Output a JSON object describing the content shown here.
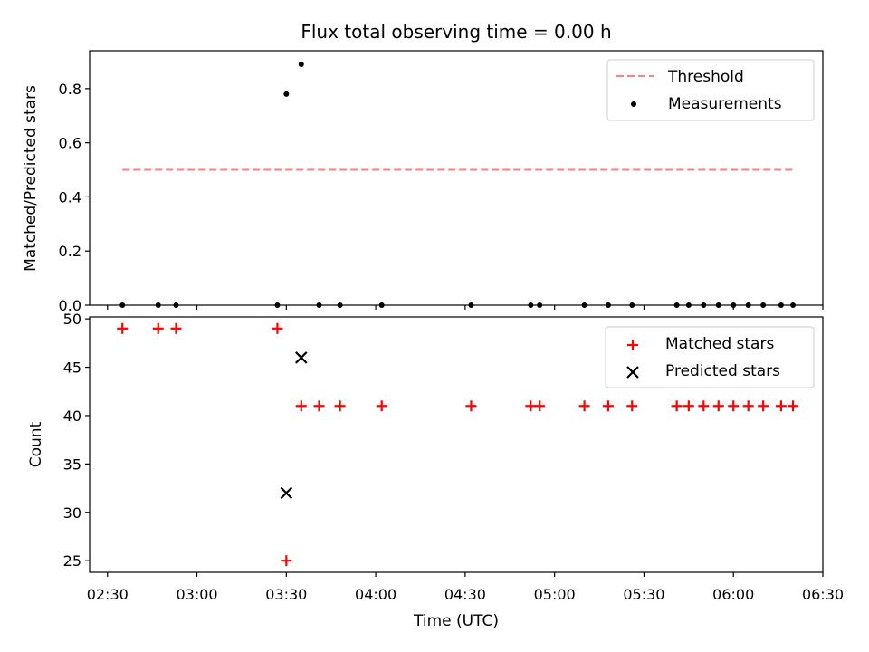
{
  "chart_data": [
    {
      "type": "scatter",
      "title": "Flux total observing time = 0.00 h",
      "ylabel": "Matched/Predicted stars",
      "xlabel": "",
      "x_tick_labels": [],
      "ylim": [
        0.0,
        0.94
      ],
      "yticks": [
        0.0,
        0.2,
        0.4,
        0.6,
        0.8
      ],
      "ytick_labels": [
        "0.0",
        "0.2",
        "0.4",
        "0.6",
        "0.8"
      ],
      "legend_position": "top-right",
      "series": [
        {
          "name": "Threshold",
          "kind": "line",
          "style": "dashed",
          "color": "#ff7f7f",
          "points": [
            [
              "02:35",
              0.5
            ],
            [
              "06:20",
              0.5
            ]
          ]
        },
        {
          "name": "Measurements",
          "kind": "scatter",
          "marker": "dot",
          "color": "#000000",
          "points": [
            [
              "02:35",
              0.0
            ],
            [
              "02:47",
              0.0
            ],
            [
              "02:53",
              0.0
            ],
            [
              "03:27",
              0.0
            ],
            [
              "03:30",
              0.78
            ],
            [
              "03:35",
              0.89
            ],
            [
              "03:41",
              0.0
            ],
            [
              "03:48",
              0.0
            ],
            [
              "04:02",
              0.0
            ],
            [
              "04:32",
              0.0
            ],
            [
              "04:52",
              0.0
            ],
            [
              "04:55",
              0.0
            ],
            [
              "05:10",
              0.0
            ],
            [
              "05:18",
              0.0
            ],
            [
              "05:26",
              0.0
            ],
            [
              "05:41",
              0.0
            ],
            [
              "05:45",
              0.0
            ],
            [
              "05:50",
              0.0
            ],
            [
              "05:55",
              0.0
            ],
            [
              "06:00",
              0.0
            ],
            [
              "06:05",
              0.0
            ],
            [
              "06:10",
              0.0
            ],
            [
              "06:16",
              0.0
            ],
            [
              "06:20",
              0.0
            ]
          ]
        }
      ]
    },
    {
      "type": "scatter",
      "title": "",
      "xlabel": "Time (UTC)",
      "ylabel": "Count",
      "xlim": [
        "02:24",
        "06:30"
      ],
      "xticks": [
        "02:30",
        "03:00",
        "03:30",
        "04:00",
        "04:30",
        "05:00",
        "05:30",
        "06:00",
        "06:30"
      ],
      "ylim": [
        23.8,
        50.2
      ],
      "yticks": [
        25,
        30,
        35,
        40,
        45,
        50
      ],
      "ytick_labels": [
        "25",
        "30",
        "35",
        "40",
        "45",
        "50"
      ],
      "legend_position": "top-right",
      "series": [
        {
          "name": "Matched stars",
          "kind": "scatter",
          "marker": "plus",
          "color": "#ff0000",
          "points": [
            [
              "02:35",
              49
            ],
            [
              "02:47",
              49
            ],
            [
              "02:53",
              49
            ],
            [
              "03:27",
              49
            ],
            [
              "03:30",
              25
            ],
            [
              "03:35",
              41
            ],
            [
              "03:41",
              41
            ],
            [
              "03:48",
              41
            ],
            [
              "04:02",
              41
            ],
            [
              "04:32",
              41
            ],
            [
              "04:52",
              41
            ],
            [
              "04:55",
              41
            ],
            [
              "05:10",
              41
            ],
            [
              "05:18",
              41
            ],
            [
              "05:26",
              41
            ],
            [
              "05:41",
              41
            ],
            [
              "05:45",
              41
            ],
            [
              "05:50",
              41
            ],
            [
              "05:55",
              41
            ],
            [
              "06:00",
              41
            ],
            [
              "06:05",
              41
            ],
            [
              "06:10",
              41
            ],
            [
              "06:16",
              41
            ],
            [
              "06:20",
              41
            ]
          ]
        },
        {
          "name": "Predicted stars",
          "kind": "scatter",
          "marker": "x",
          "color": "#000000",
          "points": [
            [
              "03:30",
              32
            ],
            [
              "03:35",
              46
            ]
          ]
        }
      ]
    }
  ]
}
